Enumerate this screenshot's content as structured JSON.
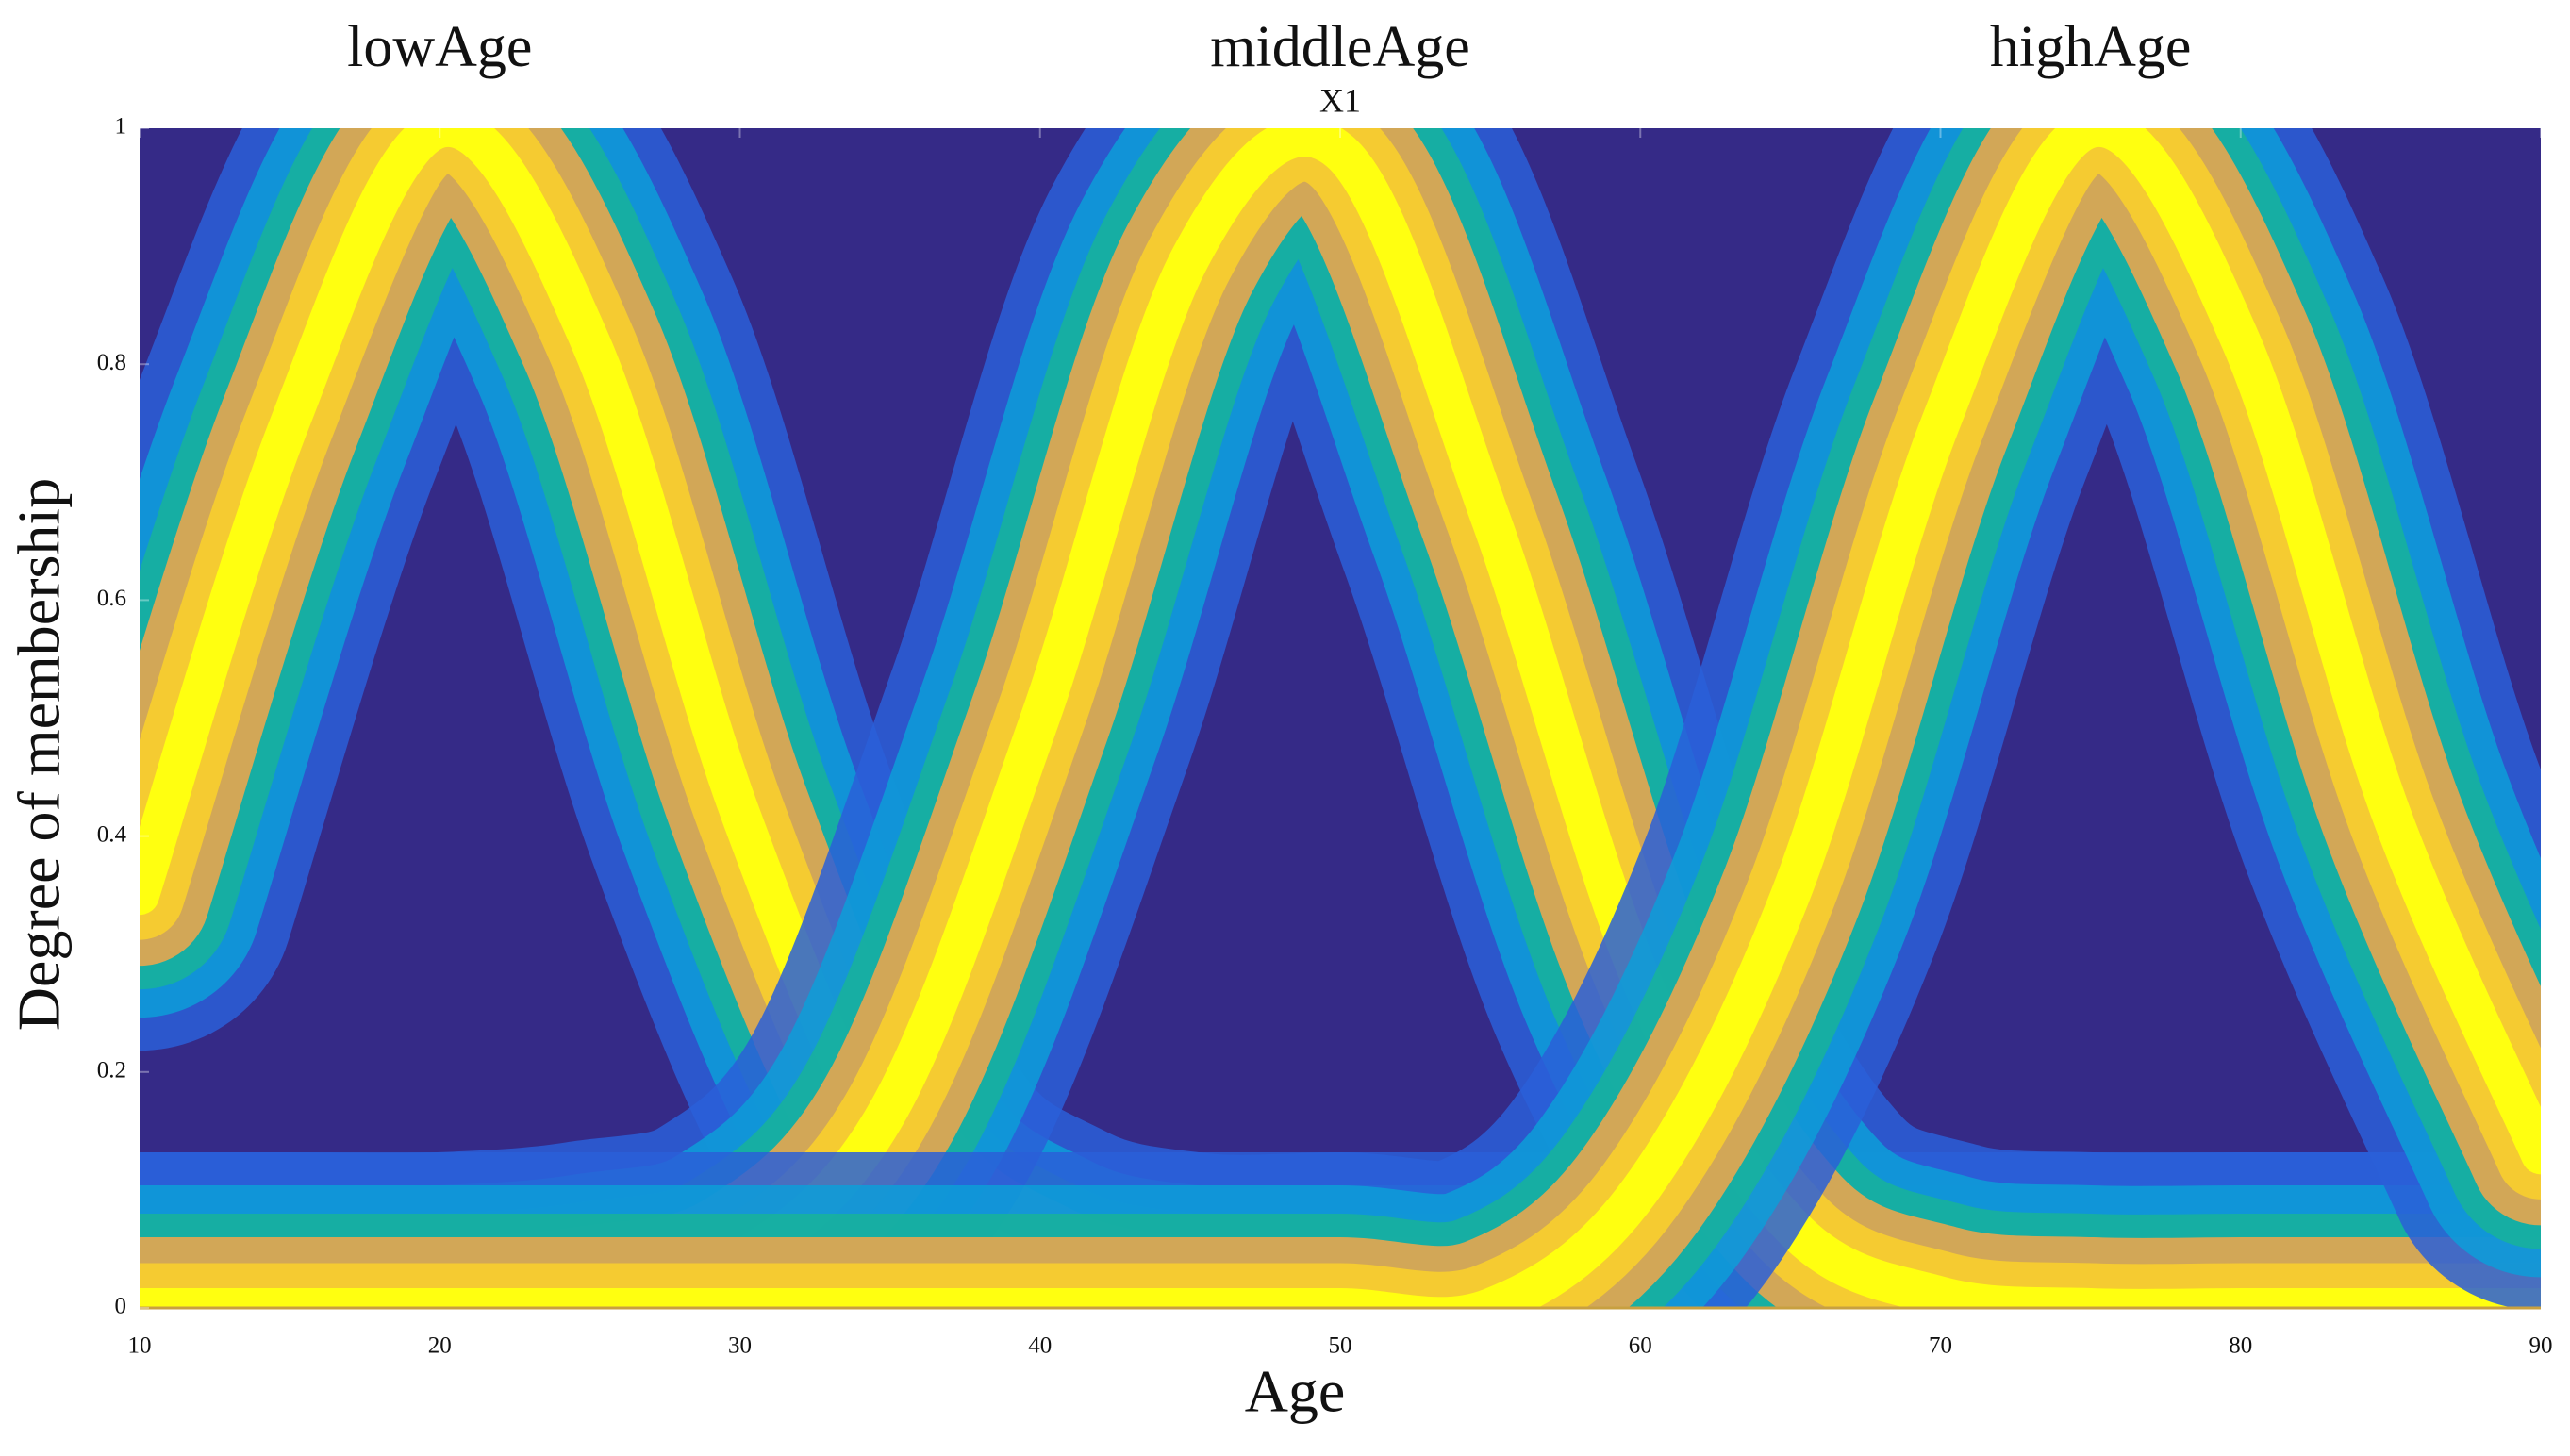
{
  "chart_data": {
    "type": "line",
    "annotation": "X1",
    "x_label": "Age",
    "y_label": "Degree of membership",
    "x": [
      10,
      15,
      20,
      25,
      30,
      35,
      40,
      45,
      50,
      55,
      60,
      65,
      70,
      75,
      80,
      85,
      90
    ],
    "series": [
      {
        "name": "lowAge",
        "color": "#ffff10",
        "values": [
          0.35,
          0.75,
          1.0,
          0.82,
          0.42,
          0.13,
          0.03,
          0.0,
          0,
          0,
          0,
          0,
          0,
          0,
          0,
          0,
          0
        ]
      },
      {
        "name": "middleAge",
        "color": "#ffff10",
        "values": [
          0,
          0,
          0,
          0.01,
          0.04,
          0.17,
          0.5,
          0.89,
          0.98,
          0.67,
          0.28,
          0.07,
          0.01,
          0,
          0,
          0,
          0
        ]
      },
      {
        "name": "highAge",
        "color": "#ffff10",
        "values": [
          0,
          0,
          0,
          0,
          0,
          0,
          0,
          0,
          0,
          0,
          0.1,
          0.35,
          0.75,
          1.0,
          0.82,
          0.42,
          0.13
        ]
      }
    ],
    "background_color": "#352a87",
    "band_colors": [
      "#2a5fd8",
      "#0d9ed8",
      "#17b39a",
      "#f3a64a",
      "#fbd12a"
    ],
    "xlim": [
      10,
      90
    ],
    "ylim": [
      0,
      1
    ],
    "xticks": [
      10,
      20,
      30,
      40,
      50,
      60,
      70,
      80,
      90
    ],
    "yticks": [
      0,
      0.2,
      0.4,
      0.6,
      0.8,
      1
    ]
  }
}
